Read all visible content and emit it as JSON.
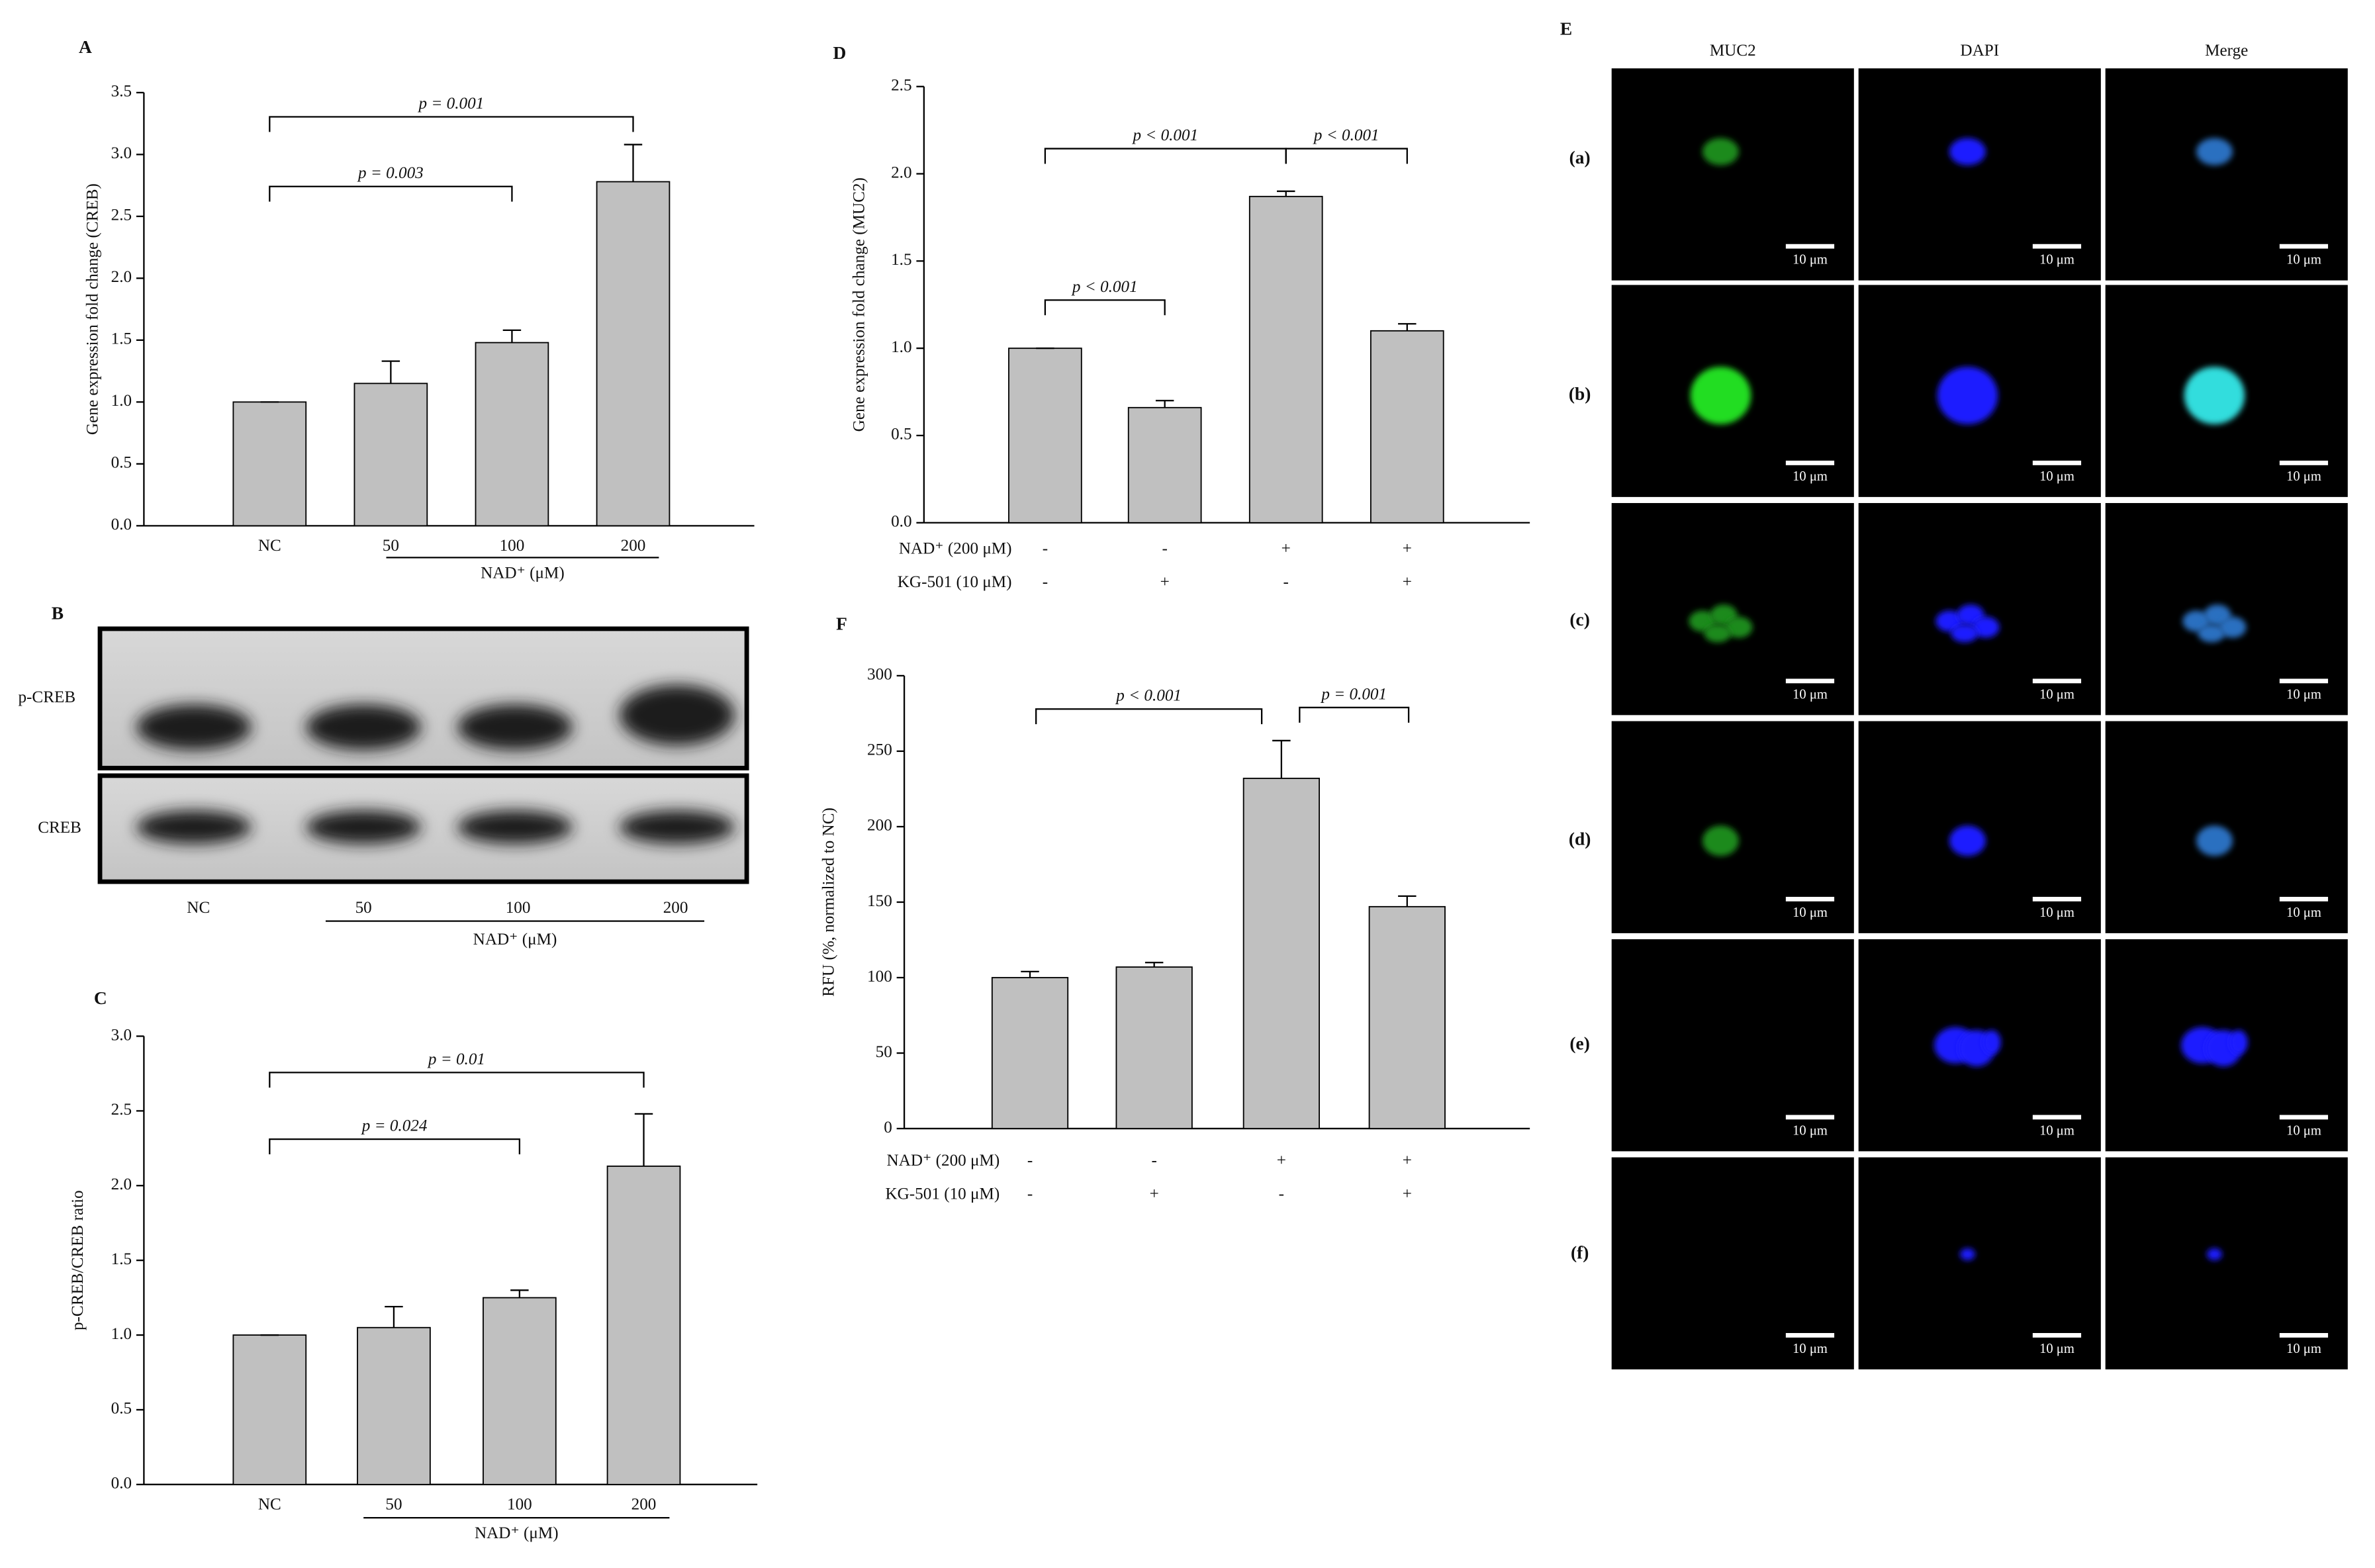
{
  "chart_data": [
    {
      "type": "bar",
      "label": "A",
      "y_label": "Gene expression fold change (CREB)",
      "categories": [
        "NC",
        "50",
        "100",
        "200"
      ],
      "values": [
        1.0,
        1.15,
        1.48,
        2.78
      ],
      "errors": [
        0,
        0.18,
        0.1,
        0.3
      ],
      "color": "#c0c0c0",
      "ylim": [
        0,
        3.5
      ],
      "yticks": [
        {
          "value": 0,
          "label": "0.0"
        },
        {
          "value": 0.5,
          "label": "0.5"
        },
        {
          "value": 1,
          "label": "1.0"
        },
        {
          "value": 1.5,
          "label": "1.5"
        },
        {
          "value": 2,
          "label": "2.0"
        },
        {
          "value": 2.5,
          "label": "2.5"
        },
        {
          "value": 3,
          "label": "3.0"
        },
        {
          "value": 3.5,
          "label": "3.5"
        }
      ],
      "group_label": "NAD⁺ (μM)",
      "annotations": [
        "p = 0.003",
        "p = 0.001"
      ]
    },
    {
      "type": "bar",
      "label": "C",
      "y_label": "p-CREB/CREB ratio",
      "categories": [
        "NC",
        "50",
        "100",
        "200"
      ],
      "values": [
        1.0,
        1.05,
        1.25,
        2.13
      ],
      "errors": [
        0,
        0.14,
        0.05,
        0.35
      ],
      "color": "#c0c0c0",
      "ylim": [
        0,
        3.0
      ],
      "yticks": [
        {
          "value": 0,
          "label": "0.0"
        },
        {
          "value": 0.5,
          "label": "0.5"
        },
        {
          "value": 1,
          "label": "1.0"
        },
        {
          "value": 1.5,
          "label": "1.5"
        },
        {
          "value": 2,
          "label": "2.0"
        },
        {
          "value": 2.5,
          "label": "2.5"
        },
        {
          "value": 3,
          "label": "3.0"
        }
      ],
      "group_label": "NAD⁺ (μM)",
      "annotations": [
        "p = 0.024",
        "p = 0.01"
      ]
    },
    {
      "type": "bar",
      "label": "D",
      "y_label": "Gene expression fold change (MUC2)",
      "values": [
        1.0,
        0.66,
        1.87,
        1.1
      ],
      "errors": [
        0,
        0.04,
        0.03,
        0.04
      ],
      "color": "#c0c0c0",
      "ylim": [
        0,
        2.5
      ],
      "yticks": [
        {
          "value": 0,
          "label": "0.0"
        },
        {
          "value": 0.5,
          "label": "0.5"
        },
        {
          "value": 1,
          "label": "1.0"
        },
        {
          "value": 1.5,
          "label": "1.5"
        },
        {
          "value": 2,
          "label": "2.0"
        },
        {
          "value": 2.5,
          "label": "2.5"
        }
      ],
      "treatments": [
        {
          "name": "NAD⁺ (200 μM)",
          "values": [
            "-",
            "-",
            "+",
            "+"
          ]
        },
        {
          "name": "KG-501 (10 μM)",
          "values": [
            "-",
            "+",
            "-",
            "+"
          ]
        }
      ],
      "annotations": [
        "p < 0.001",
        "p < 0.001",
        "p < 0.001"
      ]
    },
    {
      "type": "bar",
      "label": "F",
      "y_label": "RFU (%, normalized to NC)",
      "values": [
        100,
        107,
        232,
        147
      ],
      "errors": [
        4,
        3,
        25,
        7
      ],
      "color": "#c0c0c0",
      "ylim": [
        0,
        300
      ],
      "yticks": [
        0,
        50,
        100,
        150,
        200,
        250,
        300
      ],
      "treatments": [
        {
          "name": "NAD⁺ (200 μM)",
          "values": [
            "-",
            "-",
            "+",
            "+"
          ]
        },
        {
          "name": "KG-501 (10 μM)",
          "values": [
            "-",
            "+",
            "-",
            "+"
          ]
        }
      ],
      "annotations": [
        "p < 0.001",
        "p = 0.001"
      ]
    }
  ],
  "blot": {
    "label": "B",
    "rows": [
      "p-CREB",
      "CREB"
    ],
    "categories": [
      "NC",
      "50",
      "100",
      "200"
    ],
    "group_label": "NAD⁺ (μM)"
  },
  "microscopy": {
    "label": "E",
    "columns": [
      "MUC2",
      "DAPI",
      "Merge"
    ],
    "rows": [
      "(a)",
      "(b)",
      "(c)",
      "(d)",
      "(e)",
      "(f)"
    ],
    "scale_bar": "10 μm"
  }
}
